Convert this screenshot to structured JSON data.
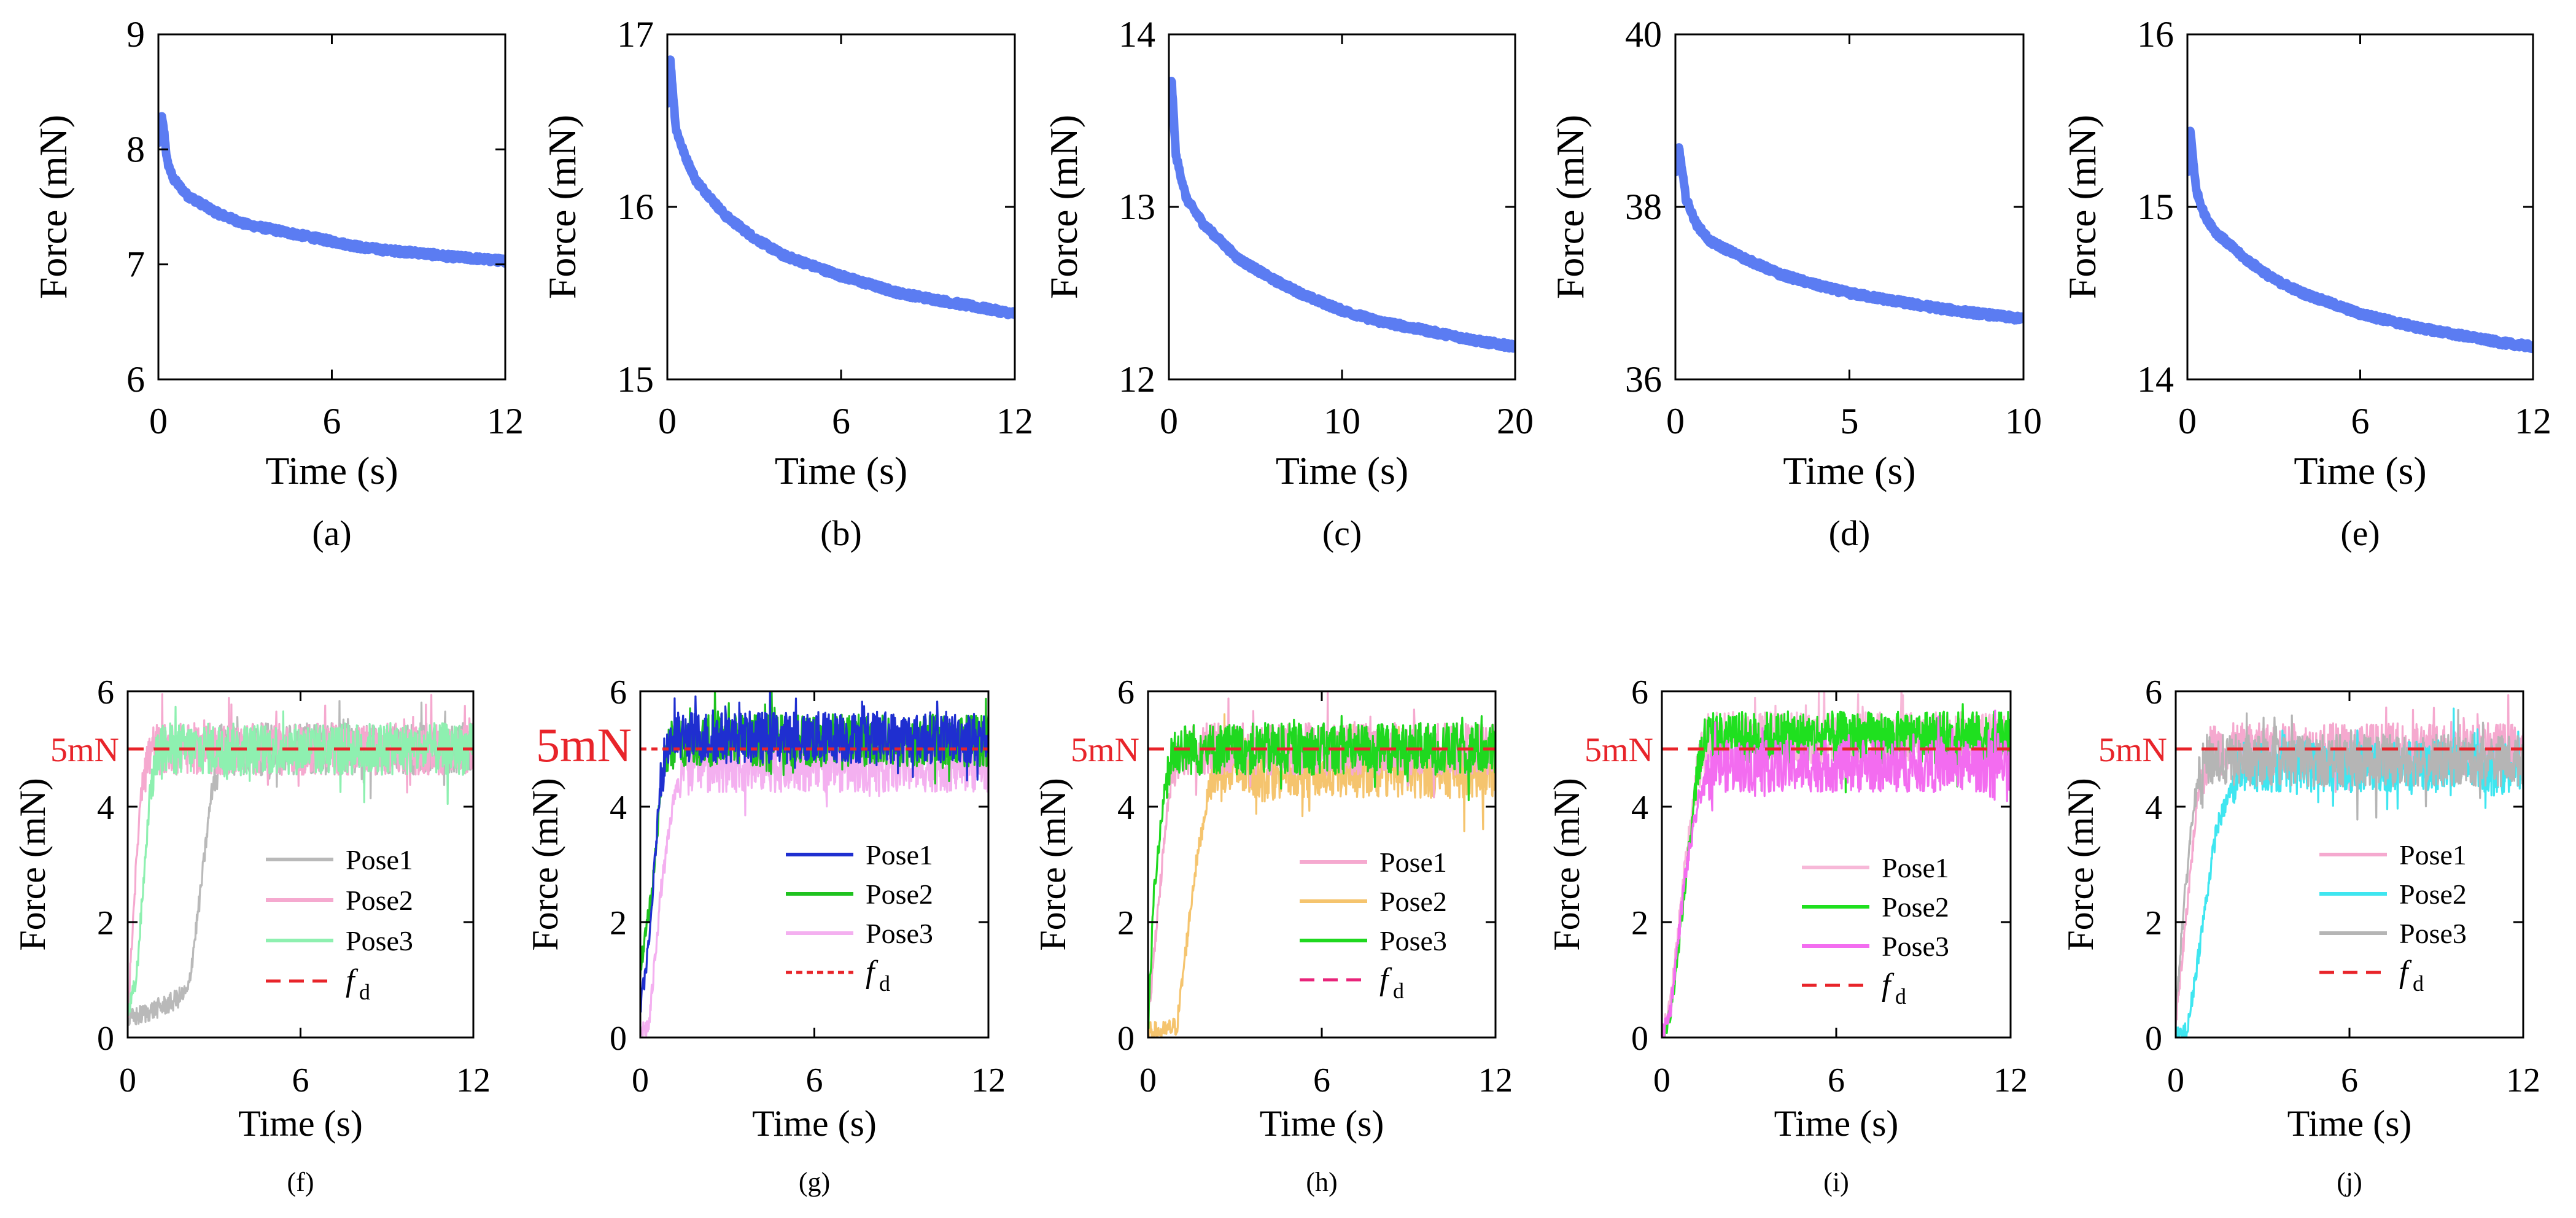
{
  "chart_data": [
    {
      "id": "a",
      "type": "line",
      "caption": "(a)",
      "xlabel": "Time (s)",
      "ylabel": "Force (mN)",
      "xlim": [
        0,
        12
      ],
      "ylim": [
        6,
        9
      ],
      "xticks": [
        "0",
        "6",
        "12"
      ],
      "xtick_values": [
        0,
        6,
        12
      ],
      "yticks": [
        "6",
        "7",
        "8",
        "9"
      ],
      "ytick_values": [
        6,
        7,
        8,
        9
      ],
      "series": [
        {
          "name": "force",
          "color": "#5b7cf2",
          "x": [
            0,
            0.1,
            0.2,
            0.3,
            0.5,
            1,
            2,
            3,
            4,
            5,
            6,
            7,
            8,
            9,
            10,
            11,
            12
          ],
          "y": [
            8.05,
            8.3,
            8.15,
            7.9,
            7.75,
            7.6,
            7.45,
            7.35,
            7.3,
            7.25,
            7.2,
            7.15,
            7.12,
            7.1,
            7.07,
            7.05,
            7.03
          ]
        }
      ]
    },
    {
      "id": "b",
      "type": "line",
      "caption": "(b)",
      "xlabel": "Time (s)",
      "ylabel": "Force (mN)",
      "xlim": [
        0,
        12
      ],
      "ylim": [
        15,
        17
      ],
      "xticks": [
        "0",
        "6",
        "12"
      ],
      "xtick_values": [
        0,
        6,
        12
      ],
      "yticks": [
        "15",
        "16",
        "17"
      ],
      "ytick_values": [
        15,
        16,
        17
      ],
      "series": [
        {
          "name": "force",
          "color": "#5b7cf2",
          "x": [
            0,
            0.1,
            0.3,
            0.6,
            1,
            2,
            3,
            4,
            5,
            6,
            7,
            8,
            9,
            10,
            11,
            12
          ],
          "y": [
            16.6,
            16.85,
            16.45,
            16.3,
            16.15,
            15.95,
            15.82,
            15.72,
            15.66,
            15.6,
            15.55,
            15.5,
            15.47,
            15.44,
            15.41,
            15.38
          ]
        }
      ]
    },
    {
      "id": "c",
      "type": "line",
      "caption": "(c)",
      "xlabel": "Time (s)",
      "ylabel": "Force (mN)",
      "xlim": [
        0,
        20
      ],
      "ylim": [
        12,
        14
      ],
      "xticks": [
        "0",
        "10",
        "20"
      ],
      "xtick_values": [
        0,
        10,
        20
      ],
      "yticks": [
        "12",
        "13",
        "14"
      ],
      "ytick_values": [
        12,
        13,
        14
      ],
      "series": [
        {
          "name": "force",
          "color": "#5b7cf2",
          "x": [
            0,
            0.15,
            0.4,
            1,
            2,
            4,
            6,
            8,
            10,
            12,
            14,
            16,
            18,
            20
          ],
          "y": [
            13.5,
            13.75,
            13.3,
            13.05,
            12.9,
            12.7,
            12.58,
            12.48,
            12.4,
            12.34,
            12.3,
            12.26,
            12.22,
            12.19
          ]
        }
      ]
    },
    {
      "id": "d",
      "type": "line",
      "caption": "(d)",
      "xlabel": "Time (s)",
      "ylabel": "Force (mN)",
      "xlim": [
        0,
        10
      ],
      "ylim": [
        36,
        40
      ],
      "xticks": [
        "0",
        "5",
        "10"
      ],
      "xtick_values": [
        0,
        5,
        10
      ],
      "yticks": [
        "36",
        "38",
        "40"
      ],
      "ytick_values": [
        36,
        38,
        40
      ],
      "series": [
        {
          "name": "force",
          "color": "#5b7cf2",
          "x": [
            0,
            0.1,
            0.3,
            0.6,
            1,
            2,
            3,
            4,
            5,
            6,
            7,
            8,
            9,
            10
          ],
          "y": [
            38.4,
            38.7,
            38.1,
            37.8,
            37.6,
            37.4,
            37.22,
            37.1,
            37.0,
            36.93,
            36.86,
            36.8,
            36.75,
            36.7
          ]
        }
      ]
    },
    {
      "id": "e",
      "type": "line",
      "caption": "(e)",
      "xlabel": "Time (s)",
      "ylabel": "Force (mN)",
      "xlim": [
        0,
        12
      ],
      "ylim": [
        14,
        16
      ],
      "xticks": [
        "0",
        "6",
        "12"
      ],
      "xtick_values": [
        0,
        6,
        12
      ],
      "yticks": [
        "14",
        "15",
        "16"
      ],
      "ytick_values": [
        14,
        15,
        16
      ],
      "series": [
        {
          "name": "force",
          "color": "#5b7cf2",
          "x": [
            0,
            0.1,
            0.3,
            0.6,
            1,
            2,
            3,
            4,
            5,
            6,
            7,
            8,
            9,
            10,
            11,
            12
          ],
          "y": [
            15.2,
            15.45,
            15.1,
            14.95,
            14.85,
            14.7,
            14.58,
            14.5,
            14.44,
            14.38,
            14.34,
            14.3,
            14.27,
            14.24,
            14.21,
            14.19
          ]
        }
      ]
    },
    {
      "id": "f",
      "type": "line",
      "caption": "(f)",
      "xlabel": "Time (s)",
      "ylabel": "Force (mN)",
      "xlim": [
        0,
        12
      ],
      "ylim": [
        0,
        6
      ],
      "xticks": [
        "0",
        "6",
        "12"
      ],
      "xtick_values": [
        0,
        6,
        12
      ],
      "yticks": [
        "0",
        "2",
        "4",
        "6"
      ],
      "ytick_values": [
        0,
        2,
        4,
        6
      ],
      "reference": {
        "label": "5mN",
        "value": 5,
        "color": "#e8242a",
        "dash": "long"
      },
      "legend": [
        {
          "name": "Pose1",
          "color": "#b9b9b9",
          "dash": "solid"
        },
        {
          "name": "Pose2",
          "color": "#f5a9cf",
          "dash": "solid"
        },
        {
          "name": "Pose3",
          "color": "#8ef0b0",
          "dash": "solid"
        },
        {
          "name": "f",
          "sub": "d",
          "color": "#e8242a",
          "dash": "long"
        }
      ],
      "series": [
        {
          "name": "Pose1",
          "color": "#b9b9b9",
          "x": [
            0,
            1.5,
            2.1,
            2.5,
            2.9,
            3.2,
            12
          ],
          "y": [
            0.3,
            0.6,
            0.8,
            2.4,
            4.2,
            5.0,
            5.0
          ]
        },
        {
          "name": "Pose2",
          "color": "#f5a9cf",
          "x": [
            0,
            0.2,
            0.5,
            0.9,
            12
          ],
          "y": [
            0.3,
            2.2,
            4.6,
            5.0,
            5.0
          ]
        },
        {
          "name": "Pose3",
          "color": "#8ef0b0",
          "x": [
            0,
            0.3,
            0.8,
            1.1,
            12
          ],
          "y": [
            0.4,
            1.0,
            4.4,
            5.0,
            5.0
          ]
        }
      ]
    },
    {
      "id": "g",
      "type": "line",
      "caption": "(g)",
      "xlabel": "Time (s)",
      "ylabel": "Force (mN)",
      "xlim": [
        0,
        12
      ],
      "ylim": [
        0,
        6
      ],
      "xticks": [
        "0",
        "6",
        "12"
      ],
      "xtick_values": [
        0,
        6,
        12
      ],
      "yticks": [
        "0",
        "2",
        "4",
        "6"
      ],
      "ytick_values": [
        0,
        2,
        4,
        6
      ],
      "reference": {
        "label": "5mN",
        "value": 5,
        "color": "#e8242a",
        "dash": "short"
      },
      "legend": [
        {
          "name": "Pose1",
          "color": "#1f2fd0",
          "dash": "solid"
        },
        {
          "name": "Pose2",
          "color": "#1fc21f",
          "dash": "solid"
        },
        {
          "name": "Pose3",
          "color": "#f4b0f0",
          "dash": "solid"
        },
        {
          "name": "f",
          "sub": "d",
          "color": "#e8242a",
          "dash": "short"
        }
      ],
      "series": [
        {
          "name": "Pose3",
          "color": "#f4b0f0",
          "x": [
            0,
            0.3,
            0.7,
            1.2,
            1.8,
            12
          ],
          "y": [
            0.1,
            0.2,
            2.5,
            4.3,
            4.7,
            4.7
          ]
        },
        {
          "name": "Pose2",
          "color": "#1fc21f",
          "x": [
            0,
            0.4,
            0.8,
            1.2,
            12
          ],
          "y": [
            1.2,
            2.5,
            4.8,
            5.15,
            5.15
          ]
        },
        {
          "name": "Pose1",
          "color": "#1f2fd0",
          "x": [
            0,
            0.3,
            0.7,
            1.0,
            12
          ],
          "y": [
            0.5,
            1.6,
            4.5,
            5.2,
            5.2
          ]
        }
      ]
    },
    {
      "id": "h",
      "type": "line",
      "caption": "(h)",
      "xlabel": "Time (s)",
      "ylabel": "Force (mN)",
      "xlim": [
        0,
        12
      ],
      "ylim": [
        0,
        6
      ],
      "xticks": [
        "0",
        "6",
        "12"
      ],
      "xtick_values": [
        0,
        6,
        12
      ],
      "yticks": [
        "0",
        "2",
        "4",
        "6"
      ],
      "ytick_values": [
        0,
        2,
        4,
        6
      ],
      "reference": {
        "label": "5mN",
        "value": 5,
        "color": "#e8242a",
        "dash": "long"
      },
      "legend": [
        {
          "name": "Pose1",
          "color": "#f5a9cf",
          "dash": "solid"
        },
        {
          "name": "Pose2",
          "color": "#f5c46e",
          "dash": "solid"
        },
        {
          "name": "Pose3",
          "color": "#1fd81f",
          "dash": "solid"
        },
        {
          "name": "f",
          "sub": "d",
          "color": "#e8247a",
          "dash": "long"
        }
      ],
      "series": [
        {
          "name": "Pose2",
          "color": "#f5c46e",
          "x": [
            0,
            0.5,
            1.0,
            1.6,
            2.2,
            12
          ],
          "y": [
            0.1,
            0.1,
            0.2,
            2.8,
            4.6,
            4.6
          ]
        },
        {
          "name": "Pose1",
          "color": "#f5a9cf",
          "x": [
            0,
            0.3,
            0.8,
            1.1,
            12
          ],
          "y": [
            0.2,
            2.0,
            4.6,
            5.0,
            5.0
          ]
        },
        {
          "name": "Pose3",
          "color": "#1fd81f",
          "x": [
            0,
            0.2,
            0.6,
            0.9,
            12
          ],
          "y": [
            0.1,
            2.5,
            4.4,
            5.0,
            5.0
          ]
        }
      ]
    },
    {
      "id": "i",
      "type": "line",
      "caption": "(i)",
      "xlabel": "Time (s)",
      "ylabel": "Force (mN)",
      "xlim": [
        0,
        12
      ],
      "ylim": [
        0,
        6
      ],
      "xticks": [
        "0",
        "6",
        "12"
      ],
      "xtick_values": [
        0,
        6,
        12
      ],
      "yticks": [
        "0",
        "2",
        "4",
        "6"
      ],
      "ytick_values": [
        0,
        2,
        4,
        6
      ],
      "reference": {
        "label": "5mN",
        "value": 5,
        "color": "#e8242a",
        "dash": "long"
      },
      "legend": [
        {
          "name": "Pose1",
          "color": "#f7b8d8",
          "dash": "solid"
        },
        {
          "name": "Pose2",
          "color": "#1fe01f",
          "dash": "solid"
        },
        {
          "name": "Pose3",
          "color": "#f36cf0",
          "dash": "solid"
        },
        {
          "name": "f",
          "sub": "d",
          "color": "#e8242a",
          "dash": "long"
        }
      ],
      "series": [
        {
          "name": "Pose1",
          "color": "#f7b8d8",
          "x": [
            0,
            0.3,
            0.8,
            1.2,
            1.6,
            12
          ],
          "y": [
            0.0,
            0.6,
            3.0,
            4.6,
            5.2,
            5.2
          ]
        },
        {
          "name": "Pose2",
          "color": "#1fe01f",
          "x": [
            0,
            0.3,
            0.8,
            1.2,
            1.5,
            12
          ],
          "y": [
            0.0,
            0.4,
            2.6,
            4.6,
            5.2,
            5.2
          ]
        },
        {
          "name": "Pose3",
          "color": "#f36cf0",
          "x": [
            0,
            0.3,
            0.8,
            1.3,
            1.8,
            12
          ],
          "y": [
            0.0,
            0.5,
            2.8,
            4.2,
            4.7,
            4.7
          ]
        }
      ]
    },
    {
      "id": "j",
      "type": "line",
      "caption": "(j)",
      "xlabel": "Time (s)",
      "ylabel": "Force (mN)",
      "xlim": [
        0,
        12
      ],
      "ylim": [
        0,
        6
      ],
      "xticks": [
        "0",
        "6",
        "12"
      ],
      "xtick_values": [
        0,
        6,
        12
      ],
      "yticks": [
        "0",
        "2",
        "4",
        "6"
      ],
      "ytick_values": [
        0,
        2,
        4,
        6
      ],
      "reference": {
        "label": "5mN",
        "value": 5,
        "color": "#e8242a",
        "dash": "long"
      },
      "legend": [
        {
          "name": "Pose1",
          "color": "#f5a9cf",
          "dash": "solid"
        },
        {
          "name": "Pose2",
          "color": "#3fe6f0",
          "dash": "solid"
        },
        {
          "name": "Pose3",
          "color": "#b5b5b5",
          "dash": "solid"
        },
        {
          "name": "f",
          "sub": "d",
          "color": "#e8242a",
          "dash": "long"
        }
      ],
      "series": [
        {
          "name": "Pose1",
          "color": "#f5a9cf",
          "x": [
            0,
            0.3,
            0.8,
            1.2,
            12
          ],
          "y": [
            0.2,
            1.8,
            4.4,
            5.0,
            5.0
          ]
        },
        {
          "name": "Pose2",
          "color": "#3fe6f0",
          "x": [
            0,
            0.4,
            0.8,
            1.4,
            2.2,
            12
          ],
          "y": [
            0.0,
            0.1,
            1.5,
            3.6,
            4.7,
            4.7
          ]
        },
        {
          "name": "Pose3",
          "color": "#b5b5b5",
          "x": [
            0,
            0.2,
            0.6,
            1.0,
            12
          ],
          "y": [
            0.4,
            1.8,
            4.0,
            4.8,
            4.8
          ]
        }
      ]
    }
  ]
}
